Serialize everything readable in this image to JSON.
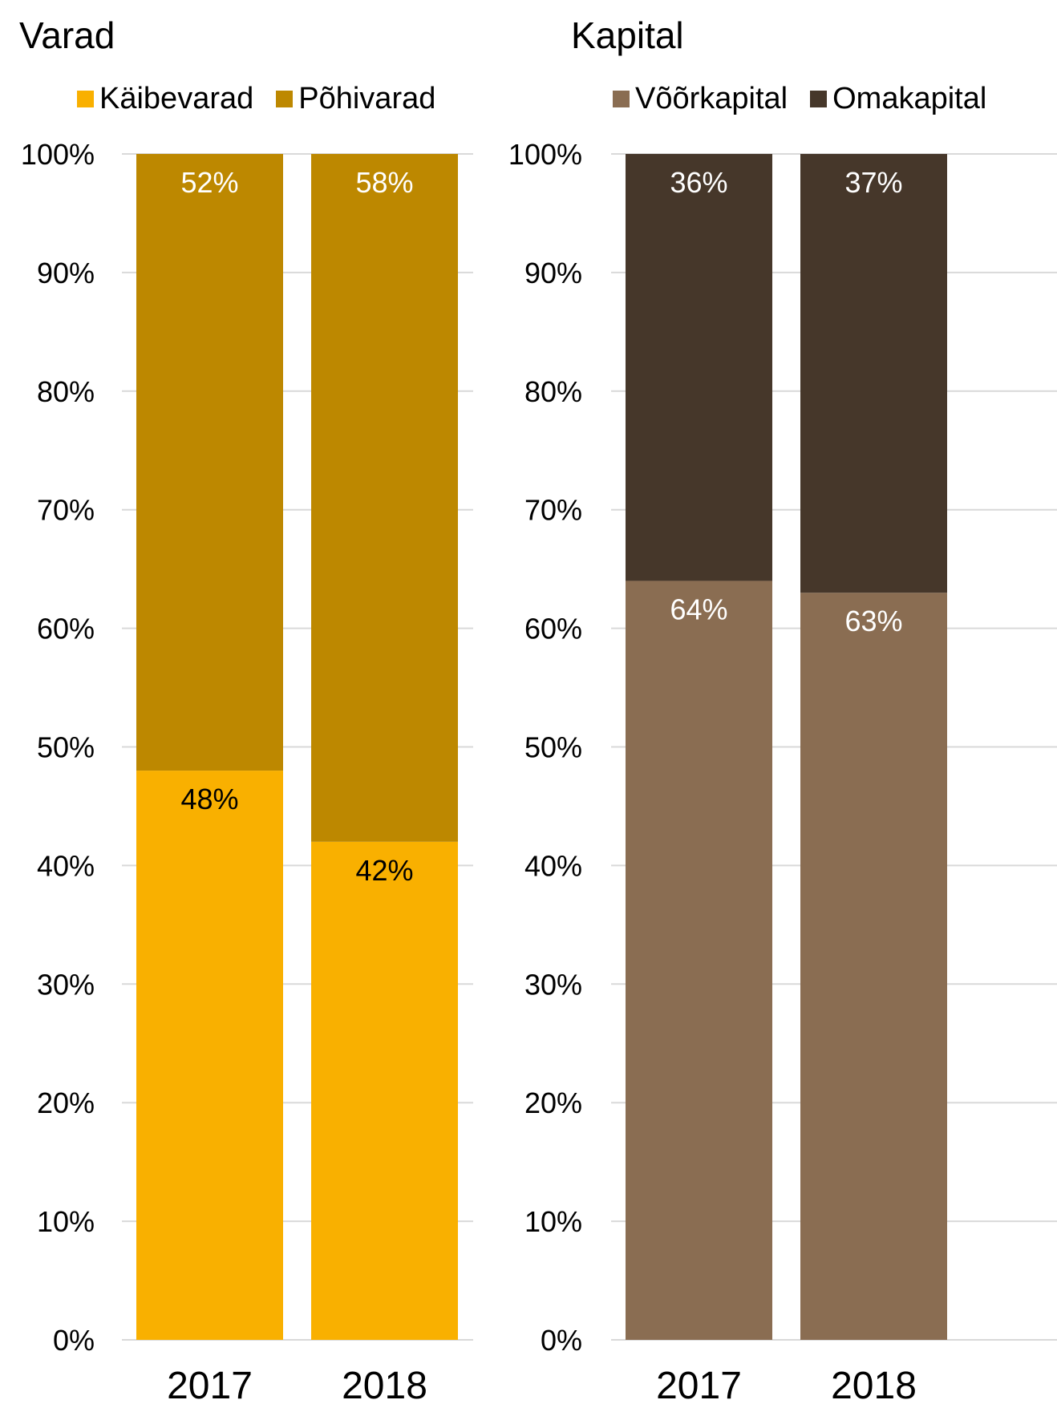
{
  "chart_data": [
    {
      "type": "bar",
      "stacked": true,
      "title": "Varad",
      "categories": [
        "2017",
        "2018"
      ],
      "series": [
        {
          "name": "Käibevarad",
          "values": [
            48,
            42
          ],
          "labels": [
            "48%",
            "42%"
          ],
          "color": "#F9B000",
          "label_color": "#000000"
        },
        {
          "name": "Põhivarad",
          "values": [
            52,
            58
          ],
          "labels": [
            "52%",
            "58%"
          ],
          "color": "#BD8800",
          "label_color": "#FFFFFF"
        }
      ],
      "ylim": [
        0,
        100
      ],
      "yticks": [
        "0%",
        "10%",
        "20%",
        "30%",
        "40%",
        "50%",
        "60%",
        "70%",
        "80%",
        "90%",
        "100%"
      ],
      "grid": true,
      "legend": "top"
    },
    {
      "type": "bar",
      "stacked": true,
      "title": "Kapital",
      "categories": [
        "2017",
        "2018"
      ],
      "series": [
        {
          "name": "Võõrkapital",
          "values": [
            64,
            63
          ],
          "labels": [
            "64%",
            "63%"
          ],
          "color": "#8A6D52",
          "label_color": "#FFFFFF"
        },
        {
          "name": "Omakapital",
          "values": [
            36,
            37
          ],
          "labels": [
            "36%",
            "37%"
          ],
          "color": "#46372A",
          "label_color": "#FFFFFF"
        }
      ],
      "ylim": [
        0,
        100
      ],
      "yticks": [
        "0%",
        "10%",
        "20%",
        "30%",
        "40%",
        "50%",
        "60%",
        "70%",
        "80%",
        "90%",
        "100%"
      ],
      "grid": true,
      "legend": "top"
    }
  ]
}
